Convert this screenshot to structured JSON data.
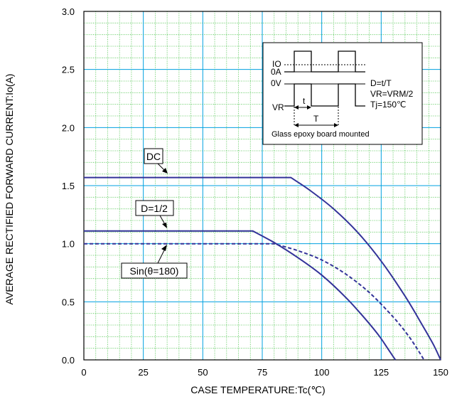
{
  "chart_data": {
    "type": "line",
    "xlabel": "CASE TEMPERATURE:Tc(℃)",
    "ylabel": "AVERAGE RECTIFIED FORWARD CURRENT:Io(A)",
    "xlim": [
      0,
      150
    ],
    "ylim": [
      0,
      3.0
    ],
    "xticks": [
      "0",
      "25",
      "50",
      "75",
      "100",
      "125",
      "150"
    ],
    "yticks": [
      "0.0",
      "0.5",
      "1.0",
      "1.5",
      "2.0",
      "2.5",
      "3.0"
    ],
    "grid": true,
    "series": [
      {
        "name": "DC",
        "style": "solid",
        "color": "#333399",
        "x": [
          0,
          87,
          95,
          105,
          115,
          125,
          135,
          142,
          147,
          150
        ],
        "y": [
          1.57,
          1.57,
          1.46,
          1.3,
          1.1,
          0.85,
          0.55,
          0.31,
          0.13,
          0.0
        ]
      },
      {
        "name": "D=1/2",
        "style": "solid",
        "color": "#333399",
        "x": [
          0,
          71,
          80,
          90,
          100,
          110,
          118,
          124,
          128,
          131
        ],
        "y": [
          1.11,
          1.11,
          1.01,
          0.88,
          0.73,
          0.54,
          0.36,
          0.21,
          0.09,
          0.0
        ]
      },
      {
        "name": "Sin(θ=180)",
        "style": "dashed",
        "color": "#333399",
        "x": [
          0,
          80,
          90,
          100,
          110,
          120,
          130,
          136,
          140,
          143
        ],
        "y": [
          1.0,
          1.0,
          0.94,
          0.86,
          0.74,
          0.58,
          0.37,
          0.22,
          0.1,
          0.0
        ]
      }
    ],
    "annotations": [
      {
        "id": "dc",
        "text": "DC"
      },
      {
        "id": "d12",
        "text": "D=1/2"
      },
      {
        "id": "sin",
        "text": "Sin(θ=180)"
      }
    ],
    "inset": {
      "io": "IO",
      "zero_a": "0A",
      "zero_v": "0V",
      "vr": "VR",
      "t_small": "t",
      "t_big": "T",
      "duty": "D=t/T",
      "vr_eq": "VR=VRM/2",
      "tj_eq": "Tj=150℃",
      "note": "Glass epoxy board mounted"
    },
    "colors": {
      "curve": "#333399",
      "grid_major": "#00a0e0",
      "grid_minor": "#3fbf3f"
    }
  }
}
